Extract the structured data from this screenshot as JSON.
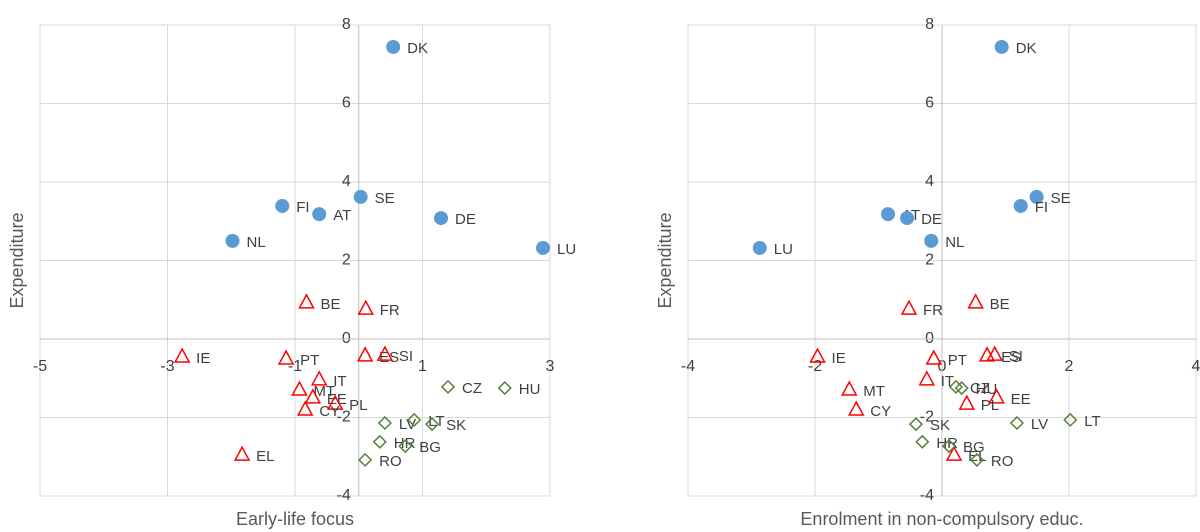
{
  "chart_data": [
    {
      "type": "scatter",
      "x_label": "Early-life focus",
      "y_label": "Expenditure",
      "xlim": [
        -5,
        3
      ],
      "ylim": [
        -4,
        8
      ],
      "xticks": [
        -5,
        -3,
        -1,
        1,
        3
      ],
      "yticks": [
        -4,
        -2,
        0,
        2,
        4,
        6,
        8
      ],
      "grid": true,
      "series": [
        {
          "marker": "circle",
          "color": "#5b9bd5",
          "labels": [
            "DK",
            "SE",
            "FI",
            "AT",
            "DE",
            "NL",
            "LU"
          ],
          "x": [
            0.54,
            0.03,
            -1.2,
            -0.62,
            1.29,
            -1.98,
            2.89
          ],
          "values": [
            7.44,
            3.62,
            3.39,
            3.18,
            3.08,
            2.5,
            2.32
          ]
        },
        {
          "marker": "triangle",
          "color": "#ff0000",
          "labels": [
            "BE",
            "FR",
            "IE",
            "PT",
            "ES",
            "SI",
            "IT",
            "MT",
            "EE",
            "PL",
            "CY",
            "EL"
          ],
          "x": [
            -0.82,
            0.11,
            -2.77,
            -1.14,
            0.1,
            0.41,
            -0.62,
            -0.93,
            -0.72,
            -0.37,
            -0.84,
            -1.83
          ],
          "values": [
            0.92,
            0.76,
            -0.46,
            -0.51,
            -0.43,
            -0.41,
            -1.04,
            -1.3,
            -1.5,
            -1.66,
            -1.81,
            -2.96
          ]
        },
        {
          "marker": "diamond",
          "color": "#548235",
          "labels": [
            "CZ",
            "HU",
            "LV",
            "LT",
            "SK",
            "HR",
            "BG",
            "RO"
          ],
          "x": [
            1.4,
            2.29,
            0.41,
            0.87,
            1.15,
            0.33,
            0.73,
            0.1
          ],
          "values": [
            -1.22,
            -1.25,
            -2.14,
            -2.06,
            -2.17,
            -2.62,
            -2.73,
            -3.08
          ]
        }
      ]
    },
    {
      "type": "scatter",
      "x_label": "Enrolment in non-compulsory educ.",
      "y_label": "Expenditure",
      "xlim": [
        -4,
        4
      ],
      "ylim": [
        -4,
        8
      ],
      "xticks": [
        -4,
        -2,
        0,
        2,
        4
      ],
      "yticks": [
        -4,
        -2,
        0,
        2,
        4,
        6,
        8
      ],
      "grid": true,
      "series": [
        {
          "marker": "circle",
          "color": "#5b9bd5",
          "labels": [
            "DK",
            "SE",
            "FI",
            "AT",
            "DE",
            "NL",
            "LU"
          ],
          "x": [
            0.94,
            1.49,
            1.24,
            -0.85,
            -0.55,
            -0.17,
            -2.87
          ],
          "values": [
            7.44,
            3.62,
            3.39,
            3.18,
            3.08,
            2.5,
            2.32
          ]
        },
        {
          "marker": "triangle",
          "color": "#ff0000",
          "labels": [
            "BE",
            "FR",
            "IE",
            "PT",
            "ES",
            "SI",
            "IT",
            "MT",
            "EE",
            "PL",
            "CY",
            "EL"
          ],
          "x": [
            0.53,
            -0.52,
            -1.96,
            -0.13,
            0.71,
            0.83,
            -0.24,
            -1.46,
            0.86,
            0.39,
            -1.35,
            0.19
          ],
          "values": [
            0.92,
            0.76,
            -0.46,
            -0.51,
            -0.43,
            -0.41,
            -1.04,
            -1.3,
            -1.5,
            -1.66,
            -1.81,
            -2.96
          ]
        },
        {
          "marker": "diamond",
          "color": "#548235",
          "labels": [
            "CZ",
            "HU",
            "LV",
            "LT",
            "SK",
            "HR",
            "BG",
            "RO"
          ],
          "x": [
            0.22,
            0.31,
            1.18,
            2.02,
            -0.41,
            -0.31,
            0.11,
            0.55
          ],
          "values": [
            -1.22,
            -1.25,
            -2.14,
            -2.06,
            -2.17,
            -2.62,
            -2.73,
            -3.08
          ]
        }
      ]
    }
  ]
}
